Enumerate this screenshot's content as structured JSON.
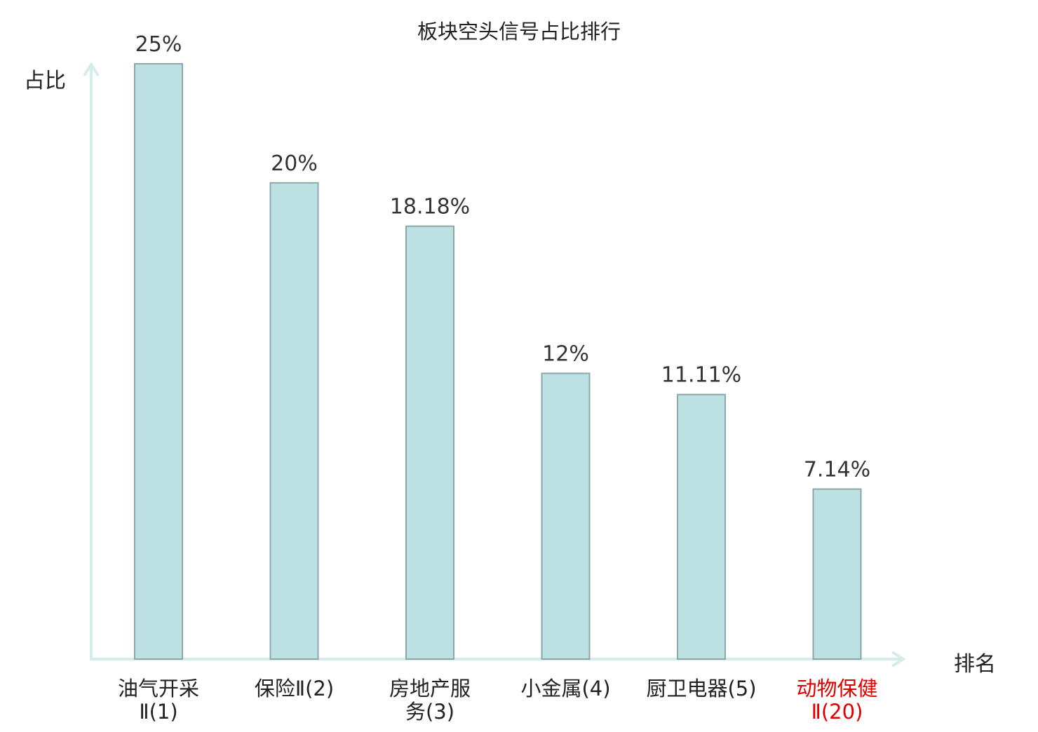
{
  "chart_data": {
    "type": "bar",
    "title": "板块空头信号占比排行",
    "ylabel": "占比",
    "xlabel": "排名",
    "ylim": [
      0,
      25
    ],
    "categories": [
      "油气开采Ⅱ(1)",
      "保险Ⅱ(2)",
      "房地产服务(3)",
      "小金属(4)",
      "厨卫电器(5)",
      "动物保健Ⅱ(20)"
    ],
    "values": [
      25,
      20,
      18.18,
      12,
      11.11,
      7.14
    ],
    "value_labels": [
      "25%",
      "20%",
      "18.18%",
      "12%",
      "11.11%",
      "7.14%"
    ],
    "highlight_index": 5,
    "grid": false,
    "colors": {
      "bar_fill": "#bde0e2",
      "bar_stroke": "#8aa8aa",
      "axis": "#d5ede9",
      "label_text": "#333333",
      "highlight": "#e00000"
    }
  },
  "x_labels": [
    {
      "line1": "油气开采",
      "line2": "Ⅱ(1)"
    },
    {
      "line1": "保险Ⅱ(2)",
      "line2": ""
    },
    {
      "line1": "房地产服",
      "line2": "务(3)"
    },
    {
      "line1": "小金属(4)",
      "line2": ""
    },
    {
      "line1": "厨卫电器(5)",
      "line2": ""
    },
    {
      "line1": "动物保健",
      "line2": "Ⅱ(20)"
    }
  ]
}
